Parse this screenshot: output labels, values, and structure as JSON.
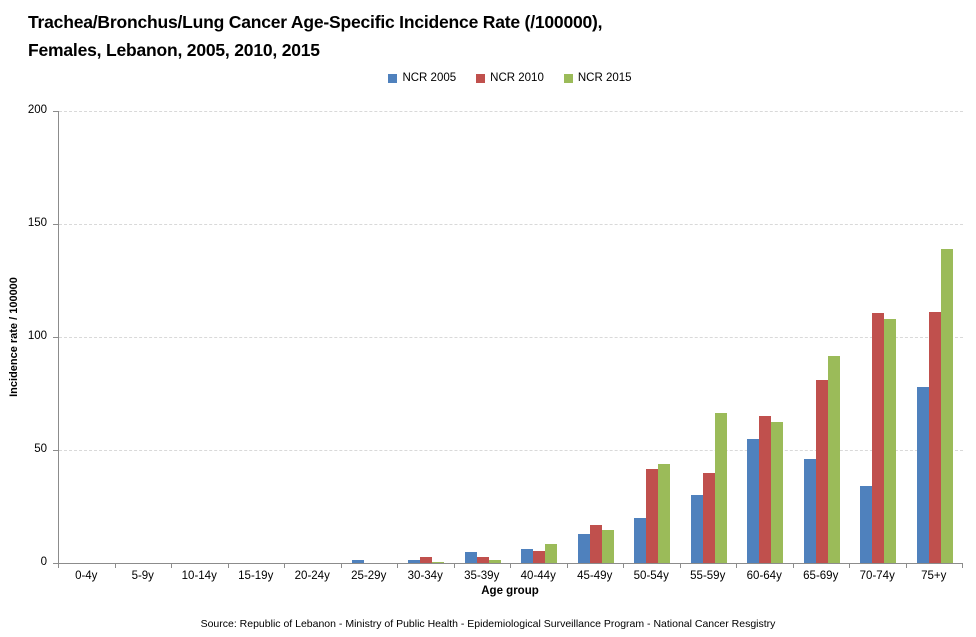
{
  "title": {
    "line1": "Trachea/Bronchus/Lung Cancer Age-Specific Incidence Rate (/100000),",
    "line2": "Females, Lebanon, 2005, 2010, 2015"
  },
  "chart_data": {
    "type": "bar",
    "title": "Trachea/Bronchus/Lung Cancer Age-Specific Incidence Rate (/100000), Females, Lebanon, 2005, 2010, 2015",
    "categories": [
      "0-4y",
      "5-9y",
      "10-14y",
      "15-19y",
      "20-24y",
      "25-29y",
      "30-34y",
      "35-39y",
      "40-44y",
      "45-49y",
      "50-54y",
      "55-59y",
      "60-64y",
      "65-69y",
      "70-74y",
      "75+y"
    ],
    "series": [
      {
        "name": "NCR 2005",
        "color": "#4f81bd",
        "values": [
          0,
          0,
          0,
          0,
          0,
          1.2,
          1.2,
          5,
          6,
          13,
          20,
          30,
          55,
          46,
          34,
          78
        ]
      },
      {
        "name": "NCR 2010",
        "color": "#c0504d",
        "values": [
          0,
          0,
          0,
          0,
          0,
          0,
          2.5,
          2.5,
          5.5,
          17,
          41.5,
          40,
          65,
          81,
          110.5,
          111
        ]
      },
      {
        "name": "NCR 2015",
        "color": "#9bbb59",
        "values": [
          0,
          0,
          0,
          0,
          0,
          0,
          0.6,
          1.5,
          8.4,
          14.5,
          44,
          66.5,
          62.5,
          91.5,
          108,
          139
        ]
      }
    ],
    "xlabel": "Age group",
    "ylabel": "Incidence rate / 100000",
    "ylim": [
      0,
      200
    ],
    "yticks": [
      0,
      50,
      100,
      150,
      200
    ],
    "grid": true,
    "legend_position": "top-center"
  },
  "footer": {
    "source": "Source: Republic of Lebanon - Ministry of Public Health - Epidemiological Surveillance Program - National Cancer Resgistry"
  },
  "colors": {
    "axis": "#8c8c8c",
    "gridline": "#d9d9d9",
    "text": "#000000"
  }
}
